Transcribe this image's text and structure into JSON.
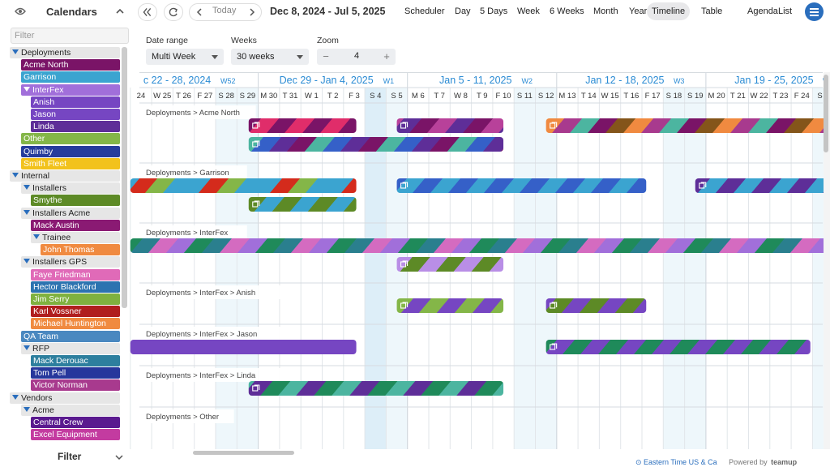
{
  "sidebar": {
    "title": "Calendars",
    "filter_placeholder": "Filter",
    "footer_label": "Filter",
    "calendars": [
      {
        "label": "Deployments",
        "type": "group",
        "level": 0
      },
      {
        "label": "Acme North",
        "type": "leaf",
        "level": 1,
        "color": "#7a1467"
      },
      {
        "label": "Garrison",
        "type": "leaf",
        "level": 1,
        "color": "#3ba4d0"
      },
      {
        "label": "InterFex",
        "type": "group-colored",
        "level": 1,
        "color": "#a16fda"
      },
      {
        "label": "Anish",
        "type": "leaf",
        "level": 2,
        "color": "#7646c2"
      },
      {
        "label": "Jason",
        "type": "leaf",
        "level": 2,
        "color": "#7646c2"
      },
      {
        "label": "Linda",
        "type": "leaf",
        "level": 2,
        "color": "#5e2e98"
      },
      {
        "label": "Other",
        "type": "leaf",
        "level": 1,
        "color": "#84b648"
      },
      {
        "label": "Quimby",
        "type": "leaf",
        "level": 1,
        "color": "#263c9c"
      },
      {
        "label": "Smith Fleet",
        "type": "leaf",
        "level": 1,
        "color": "#f2c21c"
      },
      {
        "label": "Internal",
        "type": "group",
        "level": 0
      },
      {
        "label": "Installers",
        "type": "group",
        "level": 1
      },
      {
        "label": "Smythe",
        "type": "leaf",
        "level": 2,
        "color": "#5d8a26"
      },
      {
        "label": "Installers Acme",
        "type": "group",
        "level": 1
      },
      {
        "label": "Mack Austin",
        "type": "leaf",
        "level": 2,
        "color": "#8a1a73"
      },
      {
        "label": "Trainee",
        "type": "group",
        "level": 2
      },
      {
        "label": "John Thomas",
        "type": "leaf",
        "level": 3,
        "color": "#f08a40"
      },
      {
        "label": "Installers GPS",
        "type": "group",
        "level": 1
      },
      {
        "label": "Faye Friedman",
        "type": "leaf",
        "level": 2,
        "color": "#e06ab8"
      },
      {
        "label": "Hector Blackford",
        "type": "leaf",
        "level": 2,
        "color": "#2c73b0"
      },
      {
        "label": "Jim Serry",
        "type": "leaf",
        "level": 2,
        "color": "#7fb13f"
      },
      {
        "label": "Karl Vossner",
        "type": "leaf",
        "level": 2,
        "color": "#b01e1e"
      },
      {
        "label": "Michael Huntington",
        "type": "leaf",
        "level": 2,
        "color": "#f08a40"
      },
      {
        "label": "QA Team",
        "type": "leaf",
        "level": 1,
        "color": "#4a88c0"
      },
      {
        "label": "RFP",
        "type": "group",
        "level": 1
      },
      {
        "label": "Mack Derouac",
        "type": "leaf",
        "level": 2,
        "color": "#2d7f9e"
      },
      {
        "label": "Tom Pell",
        "type": "leaf",
        "level": 2,
        "color": "#26379c"
      },
      {
        "label": "Victor Norman",
        "type": "leaf",
        "level": 2,
        "color": "#a83a8e"
      },
      {
        "label": "Vendors",
        "type": "group",
        "level": 0
      },
      {
        "label": "Acme",
        "type": "group",
        "level": 1
      },
      {
        "label": "Central Crew",
        "type": "leaf",
        "level": 2,
        "color": "#5a1a8f"
      },
      {
        "label": "Excel Equipment",
        "type": "leaf",
        "level": 2,
        "color": "#c33ba0"
      }
    ]
  },
  "toolbar": {
    "today_label": "Today",
    "range_label": "Dec 8, 2024 - Jul 5, 2025",
    "views": [
      {
        "label": "Scheduler",
        "active": false
      },
      {
        "label": "Day",
        "active": false
      },
      {
        "label": "5 Days",
        "active": false
      },
      {
        "label": "Week",
        "active": false
      },
      {
        "label": "6 Weeks",
        "active": false
      },
      {
        "label": "Month",
        "active": false
      },
      {
        "label": "Year",
        "active": false
      },
      {
        "label": "Timeline",
        "active": true
      },
      {
        "label": "Table",
        "active": false
      },
      {
        "label": "Agenda",
        "active": false
      },
      {
        "label": "List",
        "active": false
      }
    ]
  },
  "options": {
    "date_range_label": "Date range",
    "date_range_value": "Multi Week",
    "weeks_label": "Weeks",
    "weeks_value": "30 weeks",
    "zoom_label": "Zoom",
    "zoom_value": "4"
  },
  "timeline": {
    "weeks": [
      {
        "label": "c 22 - 28, 2024",
        "num": "W52"
      },
      {
        "label": "Dec 29 - Jan 4, 2025",
        "num": "W1"
      },
      {
        "label": "Jan 5 - 11, 2025",
        "num": "W2"
      },
      {
        "label": "Jan 12 - 18, 2025",
        "num": "W3"
      },
      {
        "label": "Jan 19 - 25, 2025",
        "num": "W"
      }
    ],
    "days": [
      "24",
      "W 25",
      "T 26",
      "F 27",
      "S 28",
      "S 29",
      "M 30",
      "T 31",
      "W 1",
      "T 2",
      "F 3",
      "S 4",
      "S 5",
      "M 6",
      "T 7",
      "W 8",
      "T 9",
      "F 10",
      "S 11",
      "S 12",
      "M 13",
      "T 14",
      "W 15",
      "T 16",
      "F 17",
      "S 18",
      "S 19",
      "M 20",
      "T 21",
      "W 22",
      "T 23",
      "F 24",
      "S 2"
    ],
    "weekend_days": [
      4,
      5,
      11,
      12,
      18,
      19,
      25,
      26,
      32
    ],
    "today_day": 11,
    "rows": [
      {
        "label": "Deployments > Acme North",
        "lines": 2,
        "events": [
          {
            "line": 0,
            "start": 5.55,
            "end": 10.6,
            "icon": true,
            "colors": [
              "#7a1467",
              "#e02d6a"
            ]
          },
          {
            "line": 0,
            "start": 12.5,
            "end": 17.5,
            "icon": true,
            "colors": [
              "#7a1467",
              "#b8419a",
              "#5e2e98"
            ]
          },
          {
            "line": 0,
            "start": 19.5,
            "end": 32.9,
            "icon": true,
            "colors": [
              "#f08a40",
              "#a83a8e",
              "#4cb5a0",
              "#7a1467",
              "#84551a"
            ]
          },
          {
            "line": 1,
            "start": 5.55,
            "end": 17.5,
            "icon": true,
            "colors": [
              "#7a1467",
              "#4cb5a0",
              "#3560c8",
              "#5e2e98"
            ]
          }
        ]
      },
      {
        "label": "Deployments > Garrison",
        "lines": 2,
        "events": [
          {
            "line": 0,
            "start": 0,
            "end": 10.6,
            "icon": false,
            "colors": [
              "#3ba4d0",
              "#d42b1c",
              "#84b648",
              "#3ba4d0"
            ]
          },
          {
            "line": 0,
            "start": 12.5,
            "end": 24.2,
            "icon": true,
            "colors": [
              "#3ba4d0",
              "#3560c8"
            ]
          },
          {
            "line": 0,
            "start": 26.5,
            "end": 32.9,
            "icon": true,
            "colors": [
              "#5e2e98",
              "#3ba4d0"
            ]
          },
          {
            "line": 1,
            "start": 5.55,
            "end": 10.6,
            "icon": true,
            "colors": [
              "#5d8a26",
              "#3ba4d0"
            ]
          }
        ]
      },
      {
        "label": "Deployments > InterFex",
        "lines": 2,
        "events": [
          {
            "line": 0,
            "start": 0,
            "end": 32.9,
            "icon": false,
            "colors": [
              "#2a7f8e",
              "#d46bc0",
              "#a16fda",
              "#1f8a5a"
            ]
          },
          {
            "line": 1,
            "start": 12.5,
            "end": 17.5,
            "icon": true,
            "colors": [
              "#5d8a26",
              "#b98ee6"
            ]
          }
        ]
      },
      {
        "label": "Deployments > InterFex > Anish",
        "lines": 1,
        "events": [
          {
            "line": 0,
            "start": 12.5,
            "end": 17.5,
            "icon": true,
            "colors": [
              "#7646c2",
              "#84b648"
            ]
          },
          {
            "line": 0,
            "start": 19.5,
            "end": 24.2,
            "icon": true,
            "colors": [
              "#5d8a26",
              "#7646c2"
            ]
          }
        ]
      },
      {
        "label": "Deployments > InterFex > Jason",
        "lines": 1,
        "events": [
          {
            "line": 0,
            "start": 0,
            "end": 10.6,
            "icon": false,
            "colors": [
              "#7646c2"
            ]
          },
          {
            "line": 0,
            "start": 19.5,
            "end": 31.9,
            "icon": true,
            "colors": [
              "#7646c2",
              "#1f8a5a"
            ]
          }
        ]
      },
      {
        "label": "Deployments > InterFex > Linda",
        "lines": 1,
        "events": [
          {
            "line": 0,
            "start": 5.55,
            "end": 17.5,
            "icon": true,
            "colors": [
              "#5e2e98",
              "#1f8a5a",
              "#4cb5a0"
            ]
          }
        ]
      },
      {
        "label": "Deployments > Other",
        "lines": 1,
        "events": []
      }
    ]
  },
  "footer": {
    "timezone": "Eastern Time US & Ca",
    "powered_by": "Powered by",
    "brand": "teamup"
  }
}
